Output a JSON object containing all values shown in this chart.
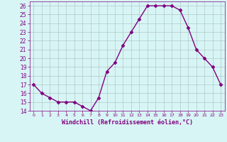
{
  "x": [
    0,
    1,
    2,
    3,
    4,
    5,
    6,
    7,
    8,
    9,
    10,
    11,
    12,
    13,
    14,
    15,
    16,
    17,
    18,
    19,
    20,
    21,
    22,
    23
  ],
  "y": [
    17,
    16,
    15.5,
    15,
    15,
    15,
    14.5,
    14,
    15.5,
    18.5,
    19.5,
    21.5,
    23,
    24.5,
    26,
    26,
    26,
    26,
    25.5,
    23.5,
    21,
    20,
    19,
    17
  ],
  "xlabel": "Windchill (Refroidissement éolien,°C)",
  "ylim": [
    14,
    26.5
  ],
  "xlim": [
    -0.5,
    23.5
  ],
  "yticks": [
    14,
    15,
    16,
    17,
    18,
    19,
    20,
    21,
    22,
    23,
    24,
    25,
    26
  ],
  "xticks": [
    0,
    1,
    2,
    3,
    4,
    5,
    6,
    7,
    8,
    9,
    10,
    11,
    12,
    13,
    14,
    15,
    16,
    17,
    18,
    19,
    20,
    21,
    22,
    23
  ],
  "line_color": "#800080",
  "marker": "D",
  "marker_size": 2.5,
  "bg_color": "#d8f5f5",
  "grid_color": "#b0c8c8",
  "label_color": "#800080",
  "tick_color": "#800080",
  "linewidth": 1.0
}
